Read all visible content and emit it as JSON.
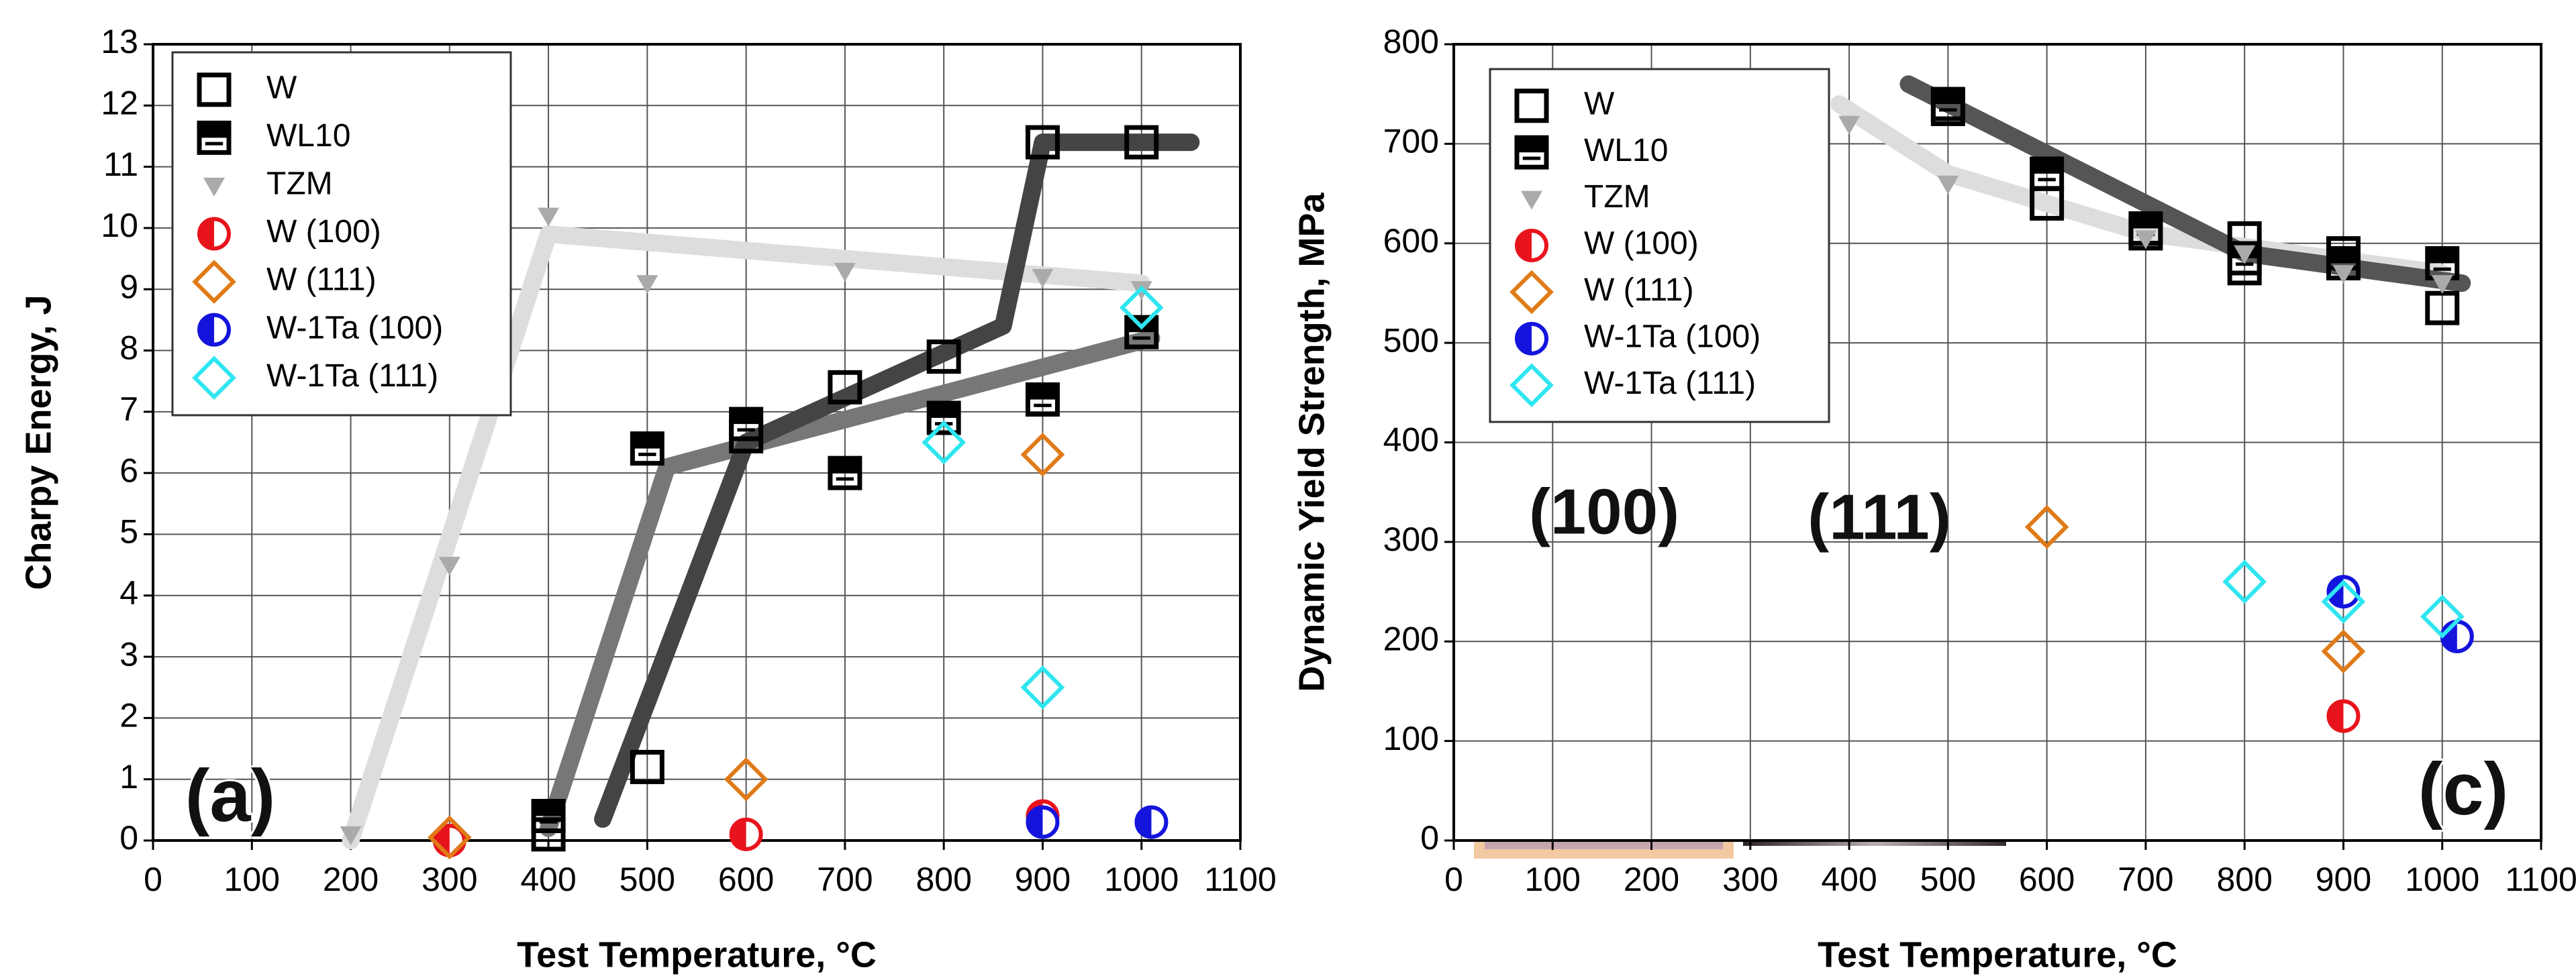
{
  "chart_data": [
    {
      "type": "scatter",
      "panel_label": "(a)",
      "x_label": "Test Temperature, °C",
      "y_label": "Charpy Energy, J",
      "xlim": [
        0,
        1100
      ],
      "ylim": [
        0,
        13
      ],
      "xticks": [
        0,
        100,
        200,
        300,
        400,
        500,
        600,
        700,
        800,
        900,
        1000,
        1100
      ],
      "yticks": [
        0,
        1,
        2,
        3,
        4,
        5,
        6,
        7,
        8,
        9,
        10,
        11,
        12,
        13
      ],
      "grid": true,
      "legend": "upper left",
      "series": [
        {
          "name": "W",
          "color": "#000000",
          "marker": "square",
          "x": [
            400,
            500,
            600,
            700,
            800,
            900,
            1000
          ],
          "values": [
            0.1,
            1.2,
            6.6,
            7.4,
            7.9,
            11.4,
            11.4
          ]
        },
        {
          "name": "WL10",
          "color": "#000000",
          "marker": "half-square",
          "x": [
            400,
            500,
            600,
            700,
            800,
            900,
            1000
          ],
          "values": [
            0.4,
            6.4,
            6.8,
            6.0,
            6.9,
            7.2,
            8.3
          ]
        },
        {
          "name": "TZM",
          "color": "#aaaaaa",
          "marker": "triangle",
          "x": [
            200,
            300,
            400,
            500,
            700,
            900,
            1000
          ],
          "values": [
            0.1,
            4.5,
            10.2,
            9.1,
            9.3,
            9.2,
            9.0
          ]
        },
        {
          "name": "W (100)",
          "color": "#e8141c",
          "marker": "half-circle",
          "x": [
            300,
            600,
            900
          ],
          "values": [
            0.0,
            0.1,
            0.4
          ]
        },
        {
          "name": "W (111)",
          "color": "#e07b18",
          "marker": "diamond",
          "x": [
            300,
            600,
            900
          ],
          "values": [
            0.05,
            1.0,
            6.3
          ]
        },
        {
          "name": "W-1Ta (100)",
          "color": "#1414dd",
          "marker": "half-circle",
          "x": [
            900,
            1010
          ],
          "values": [
            0.3,
            0.3
          ]
        },
        {
          "name": "W-1Ta (111)",
          "color": "#2ee6f0",
          "marker": "diamond",
          "x": [
            800,
            900,
            1000
          ],
          "values": [
            6.5,
            2.5,
            8.7
          ]
        }
      ],
      "lines": [
        {
          "color": "#dddddd",
          "x": [
            200,
            400,
            1000
          ],
          "values": [
            0.0,
            9.9,
            9.1
          ]
        },
        {
          "color": "#777777",
          "x": [
            400,
            520,
            1010
          ],
          "values": [
            0.2,
            6.1,
            8.2
          ]
        },
        {
          "color": "#444444",
          "x": [
            455,
            600,
            860,
            900,
            1050
          ],
          "values": [
            0.35,
            6.5,
            8.4,
            11.4,
            11.4
          ]
        }
      ]
    },
    {
      "type": "scatter",
      "panel_label": "(c)",
      "x_label": "Test Temperature, °C",
      "y_label": "Dynamic Yield Strength, MPa",
      "xlim": [
        0,
        1100
      ],
      "ylim": [
        0,
        800
      ],
      "xticks": [
        0,
        100,
        200,
        300,
        400,
        500,
        600,
        700,
        800,
        900,
        1000,
        1100
      ],
      "yticks": [
        0,
        100,
        200,
        300,
        400,
        500,
        600,
        700,
        800
      ],
      "grid": true,
      "legend": "upper left",
      "insets": [
        {
          "label": "(100)"
        },
        {
          "label": "(111)"
        }
      ],
      "series": [
        {
          "name": "W",
          "color": "#000000",
          "marker": "square",
          "x": [
            500,
            600,
            700,
            800,
            800,
            900,
            1000
          ],
          "values": [
            735,
            640,
            610,
            605,
            575,
            590,
            535
          ]
        },
        {
          "name": "WL10",
          "color": "#000000",
          "marker": "half-square",
          "x": [
            500,
            600,
            700,
            800,
            900,
            1000
          ],
          "values": [
            740,
            670,
            615,
            585,
            580,
            580
          ]
        },
        {
          "name": "TZM",
          "color": "#aaaaaa",
          "marker": "triangle",
          "x": [
            400,
            500,
            700,
            800,
            900,
            1000
          ],
          "values": [
            720,
            660,
            605,
            590,
            570,
            560
          ]
        },
        {
          "name": "W (100)",
          "color": "#e8141c",
          "marker": "half-circle",
          "x": [
            900
          ],
          "values": [
            125
          ]
        },
        {
          "name": "W (111)",
          "color": "#e07b18",
          "marker": "diamond",
          "x": [
            600,
            900
          ],
          "values": [
            315,
            190
          ]
        },
        {
          "name": "W-1Ta (100)",
          "color": "#1414dd",
          "marker": "half-circle",
          "x": [
            900,
            1015
          ],
          "values": [
            250,
            205
          ]
        },
        {
          "name": "W-1Ta (111)",
          "color": "#2ee6f0",
          "marker": "diamond",
          "x": [
            800,
            900,
            1000
          ],
          "values": [
            260,
            240,
            225
          ]
        }
      ],
      "lines": [
        {
          "color": "#dddddd",
          "x": [
            390,
            500,
            700,
            1000
          ],
          "values": [
            740,
            670,
            610,
            570
          ]
        },
        {
          "color": "#555555",
          "x": [
            460,
            800,
            1020
          ],
          "values": [
            760,
            590,
            560
          ]
        }
      ]
    }
  ]
}
